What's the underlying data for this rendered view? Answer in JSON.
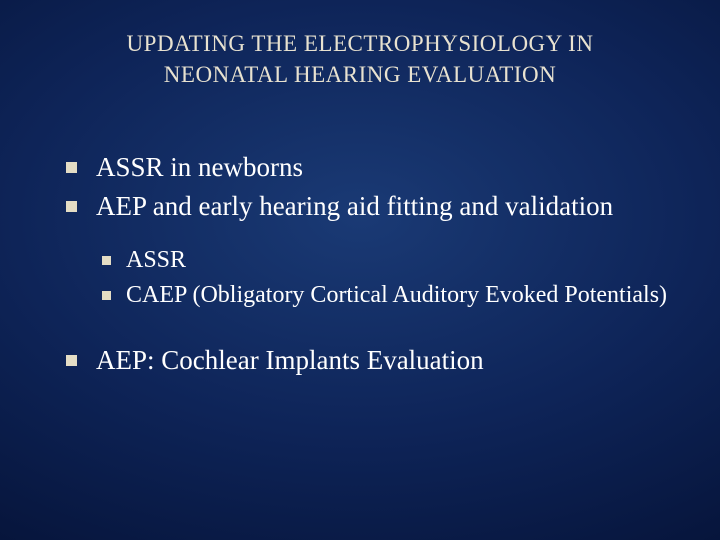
{
  "slide": {
    "background": {
      "gradient_center": "#1a3a75",
      "gradient_mid": "#0e2458",
      "gradient_outer": "#06143a",
      "gradient_edge": "#020920"
    },
    "title": {
      "line1": "UPDATING THE ELECTROPHYSIOLOGY IN",
      "line2": "NEONATAL HEARING EVALUATION",
      "color": "#e8e2d0",
      "fontsize": 23
    },
    "text_color": "#ffffff",
    "bullet_color": "#e4ddc5",
    "body_fontsize": 27,
    "sub_fontsize": 24,
    "bullets": {
      "b1": "ASSR in newborns",
      "b2": "AEP and early hearing aid fitting and validation",
      "b2_sub": {
        "s1": "ASSR",
        "s2": "CAEP (Obligatory Cortical Auditory Evoked Potentials)"
      },
      "b3": "AEP: Cochlear Implants Evaluation"
    }
  }
}
